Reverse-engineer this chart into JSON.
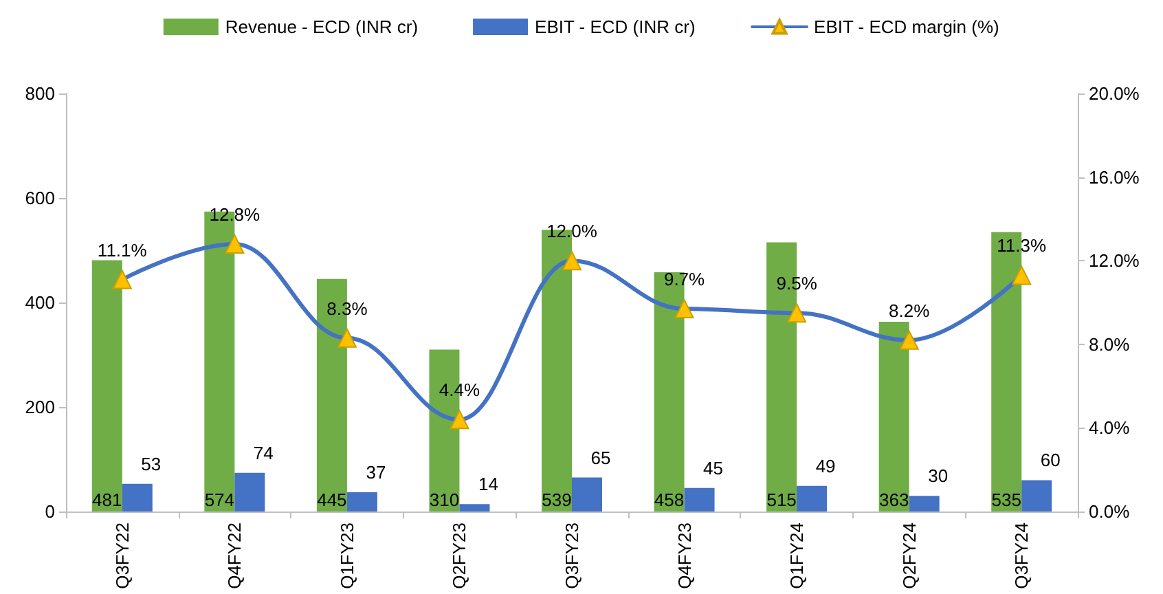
{
  "chart_data": {
    "type": "bar",
    "categories": [
      "Q3FY22",
      "Q4FY22",
      "Q1FY23",
      "Q2FY23",
      "Q3FY23",
      "Q4FY23",
      "Q1FY24",
      "Q2FY24",
      "Q3FY24"
    ],
    "series": [
      {
        "name": "Revenue - ECD (INR cr)",
        "color": "#70ad47",
        "values": [
          481,
          574,
          445,
          310,
          539,
          458,
          515,
          363,
          535
        ],
        "value_labels": [
          "481",
          "574",
          "445",
          "310",
          "539",
          "458",
          "515",
          "363",
          "535"
        ]
      },
      {
        "name": "EBIT - ECD (INR cr)",
        "color": "#4472c4",
        "values": [
          53,
          74,
          37,
          14,
          65,
          45,
          49,
          30,
          60
        ],
        "value_labels": [
          "53",
          "74",
          "37",
          "14",
          "65",
          "45",
          "49",
          "30",
          "60"
        ]
      },
      {
        "name": "EBIT - ECD margin (%)",
        "type": "line",
        "axis": "y2",
        "color": "#4472c4",
        "marker": "triangle",
        "line_style": "solid",
        "values": [
          11.1,
          12.8,
          8.3,
          4.4,
          12.0,
          9.7,
          9.5,
          8.2,
          11.3
        ],
        "value_labels": [
          "11.1%",
          "12.8%",
          "8.3%",
          "4.4%",
          "12.0%",
          "9.7%",
          "9.5%",
          "8.2%",
          "11.3%"
        ]
      }
    ],
    "ylim": [
      0,
      800
    ],
    "yticks": [
      0,
      200,
      400,
      600,
      800
    ],
    "y2lim": [
      0,
      20
    ],
    "y2ticks": [
      {
        "value": 0,
        "label": "0.0%"
      },
      {
        "value": 4,
        "label": "4.0%"
      },
      {
        "value": 8,
        "label": "8.0%"
      },
      {
        "value": 12,
        "label": "12.0%"
      },
      {
        "value": 16,
        "label": "16.0%"
      },
      {
        "value": 20,
        "label": "20.0%"
      }
    ],
    "grid": false,
    "legend": "top"
  }
}
